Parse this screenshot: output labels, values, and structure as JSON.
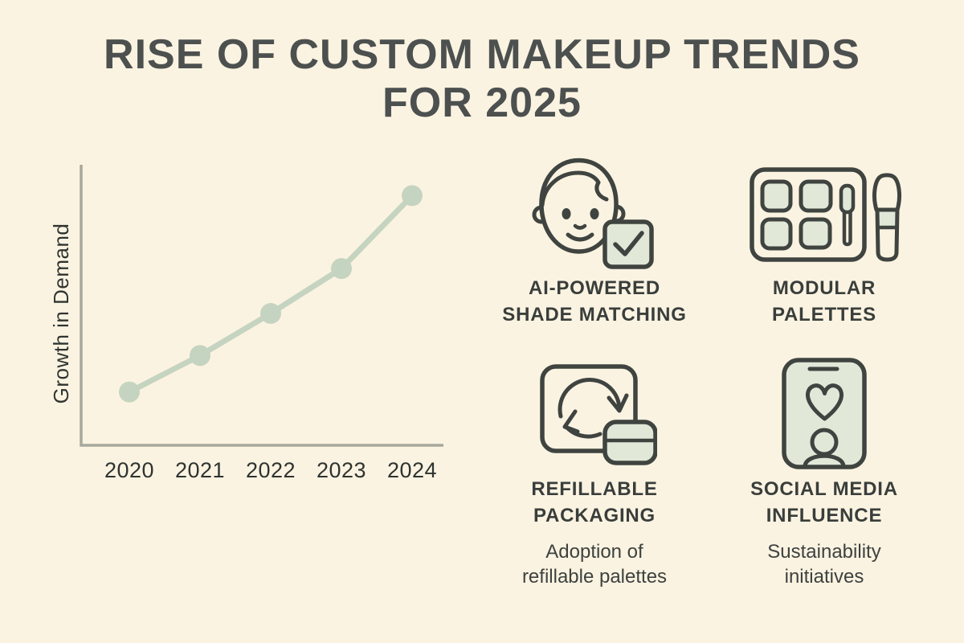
{
  "title": {
    "line1": "RISE OF CUSTOM MAKEUP TRENDS",
    "line2": "FOR 2025"
  },
  "chart_data": {
    "type": "line",
    "title": "",
    "categories": [
      "2020",
      "2021",
      "2022",
      "2023",
      "2024"
    ],
    "values": [
      19,
      32,
      47,
      63,
      89
    ],
    "xlabel": "",
    "ylabel": "Growth in Demand",
    "ylim": [
      0,
      100
    ],
    "grid": false,
    "legend": "none",
    "line_color": "#c5d4c0",
    "marker": "circle"
  },
  "trends": [
    {
      "icon": "face-shade-match-icon",
      "label_line1": "AI-POWERED",
      "label_line2": "SHADE MATCHING"
    },
    {
      "icon": "modular-palette-icon",
      "label_line1": "MODULAR",
      "label_line2": "PALETTES"
    },
    {
      "icon": "refill-cycle-icon",
      "label_line1": "REFILLABLE",
      "label_line2": "PACKAGING",
      "sub_line1": "Adoption of",
      "sub_line2": "refillable palettes"
    },
    {
      "icon": "phone-heart-icon",
      "label_line1": "SOCIAL MEDIA",
      "label_line2": "INFLUENCE",
      "sub_line1": "Sustainability",
      "sub_line2": "initiatives"
    }
  ],
  "colors": {
    "background": "#fbf3e2",
    "accent_green": "#c5d4c0",
    "icon_fill": "#e1e8d8",
    "icon_stroke": "#3f4440",
    "text_dark": "#3a3f3d",
    "axis_gray": "#a8a89c"
  }
}
